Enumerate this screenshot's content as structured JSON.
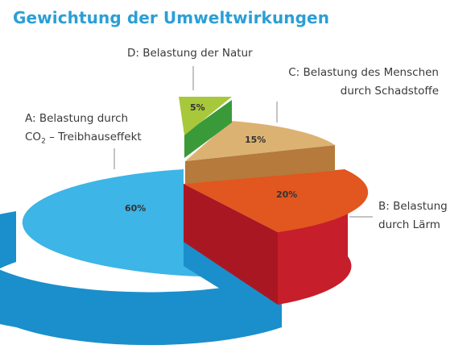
{
  "chart_data": {
    "type": "pie",
    "title": "Gewichtung der Umweltwirkungen",
    "slices": [
      {
        "label_line1": "A: Belastung durch",
        "label_line2_prefix": "CO",
        "label_line2_sub": "2",
        "label_line2_suffix": " – Treibhauseffekt",
        "value": 60,
        "value_label": "60%",
        "color_side": "#1a8fcb",
        "color_top": "#3db5e6"
      },
      {
        "label_line1": "B: Belastung",
        "label_line2": "durch Lärm",
        "value": 20,
        "value_label": "20%",
        "color_side": "#c61e2a",
        "color_top": "#e2561f"
      },
      {
        "label_line1": "C: Belastung des Menschen",
        "label_line2": "durch Schadstoffe",
        "value": 15,
        "value_label": "15%",
        "color_side": "#b57a3c",
        "color_top": "#dcb273"
      },
      {
        "label_line1": "D: Belastung der Natur",
        "value": 5,
        "value_label": "5%",
        "color_side": "#3a9a3a",
        "color_top": "#a7c83a"
      }
    ]
  }
}
